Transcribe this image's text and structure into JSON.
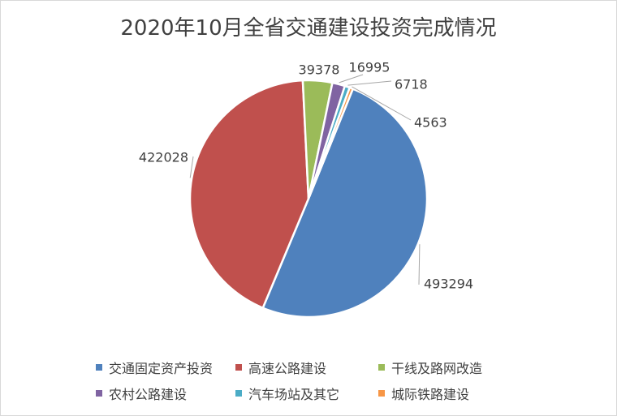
{
  "chart_data": {
    "type": "pie",
    "title": "2020年10月全省交通建设投资完成情况",
    "legend_position": "bottom",
    "slices": [
      {
        "name": "交通固定资产投资",
        "value": 493294,
        "label": "493294",
        "color": "#4F81BD"
      },
      {
        "name": "高速公路建设",
        "value": 422028,
        "label": "422028",
        "color": "#C0504D"
      },
      {
        "name": "干线及路网改造",
        "value": 39378,
        "label": "39378",
        "color": "#9BBB59"
      },
      {
        "name": "农村公路建设",
        "value": 16995,
        "label": "16995",
        "color": "#8064A2"
      },
      {
        "name": "汽车场站及其它",
        "value": 6718,
        "label": "6718",
        "color": "#4BACC6"
      },
      {
        "name": "城际铁路建设",
        "value": 4563,
        "label": "4563",
        "color": "#F79646"
      }
    ]
  }
}
